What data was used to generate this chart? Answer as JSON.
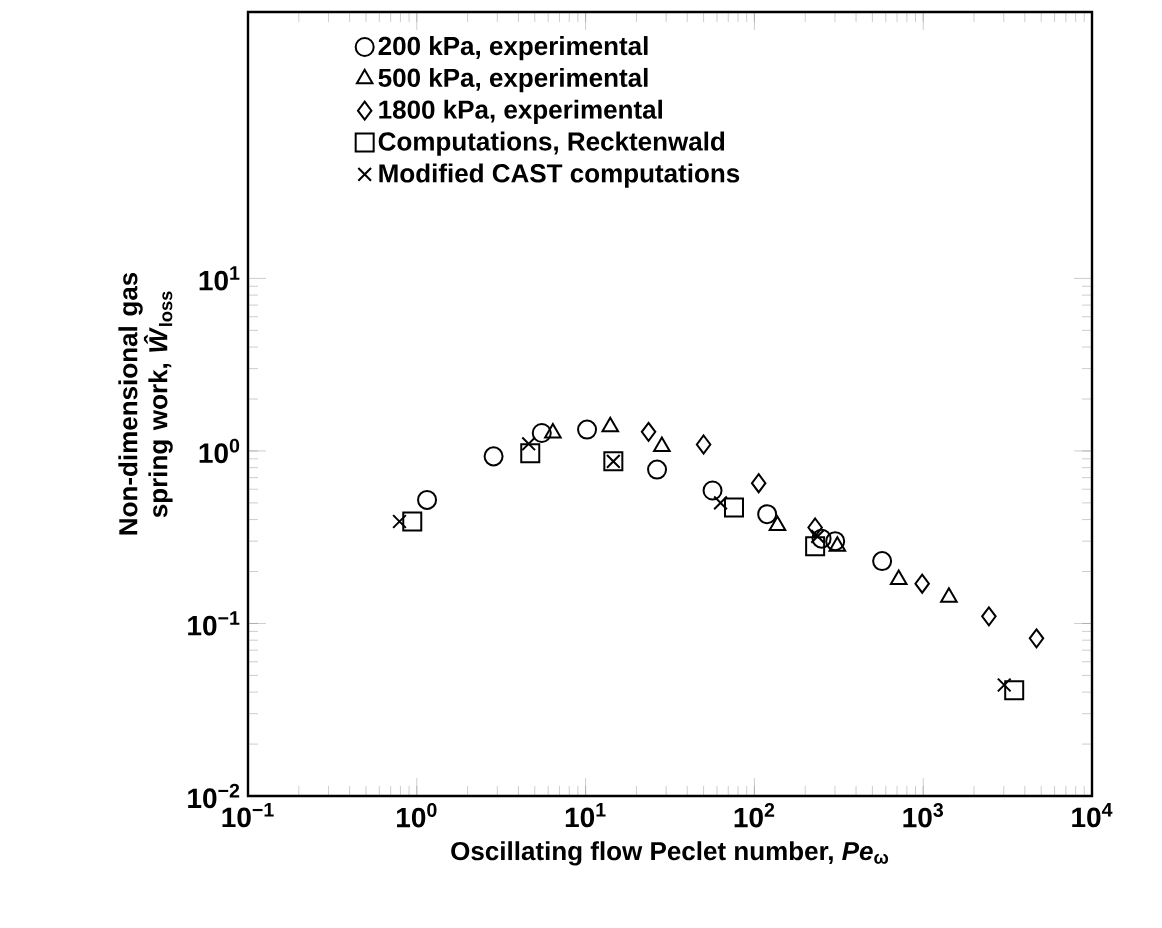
{
  "chart_data": {
    "type": "scatter",
    "xlabel": "Oscillating flow Peclet number, *Pe*$_{ω}$",
    "ylabel": "Non-dimensional gas spring work, *Ŵ*$_{loss}$",
    "log": "xy",
    "legend": "top left",
    "xlim": [
      0.1,
      10000
    ],
    "ylim": [
      0.01,
      350
    ],
    "xticks": [
      {
        "value": 0.1,
        "label": "10$^{−1}$"
      },
      {
        "value": 1,
        "label": "10$^{0}$"
      },
      {
        "value": 10,
        "label": "10$^{1}$"
      },
      {
        "value": 100,
        "label": "10$^{2}$"
      },
      {
        "value": 1000,
        "label": "10$^{3}$"
      },
      {
        "value": 10000,
        "label": "10$^{4}$"
      }
    ],
    "yticks": [
      {
        "value": 0.01,
        "label": "10$^{−2}$"
      },
      {
        "value": 0.1,
        "label": "10$^{−1}$"
      },
      {
        "value": 1,
        "label": "10$^{0}$"
      },
      {
        "value": 10,
        "label": "10$^{1}$"
      }
    ],
    "series": [
      {
        "name": "200 kPa, experimental",
        "color": "#000000",
        "marker": "circle",
        "x": [
          1.15,
          2.85,
          5.5,
          10.2,
          26.5,
          56.5,
          119,
          250,
          301,
          571
        ],
        "values": [
          0.52,
          0.93,
          1.27,
          1.33,
          0.78,
          0.59,
          0.43,
          0.31,
          0.3,
          0.23
        ]
      },
      {
        "name": "500 kPa, experimental",
        "color": "#000000",
        "marker": "triangle",
        "x": [
          6.4,
          14,
          28.3,
          137,
          310,
          716,
          1420
        ],
        "values": [
          1.27,
          1.38,
          1.06,
          0.37,
          0.28,
          0.18,
          0.142
        ]
      },
      {
        "name": "1800 kPa, experimental",
        "color": "#000000",
        "marker": "diamond",
        "x": [
          23.6,
          50,
          106,
          229,
          986,
          2450,
          4690
        ],
        "values": [
          1.29,
          1.09,
          0.65,
          0.36,
          0.17,
          0.11,
          0.082
        ]
      },
      {
        "name": "Computations, Recktenwald",
        "color": "#000000",
        "marker": "square",
        "x": [
          0.94,
          4.7,
          14.6,
          75.7,
          229,
          3460
        ],
        "values": [
          0.39,
          0.97,
          0.87,
          0.47,
          0.28,
          0.041
        ]
      },
      {
        "name": "Modified CAST computations",
        "color": "#000000",
        "marker": "cross",
        "x": [
          0.79,
          4.6,
          14.6,
          63,
          237,
          3020
        ],
        "values": [
          0.39,
          1.1,
          0.87,
          0.5,
          0.32,
          0.044
        ]
      }
    ]
  }
}
